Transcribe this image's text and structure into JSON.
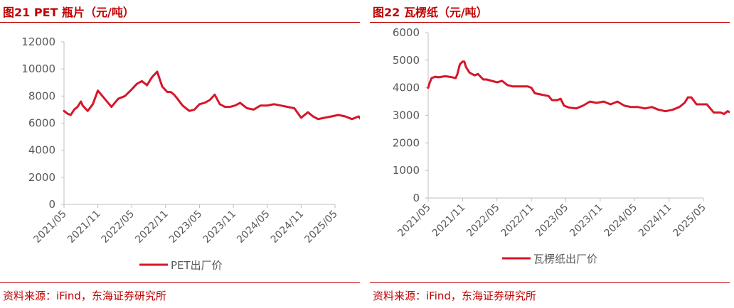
{
  "panels": [
    {
      "title": "图21  PET 瓶片（元/吨）",
      "source": "资料来源：iFind，东海证券研究所"
    },
    {
      "title": "图22  瓦楞纸（元/吨）",
      "source": "资料来源：iFind，东海证券研究所"
    }
  ],
  "colors": {
    "series": "#d7162a",
    "accent": "#c00000",
    "axis": "#bfbfbf",
    "text": "#595959"
  },
  "chart_data": [
    {
      "type": "line",
      "title": "图21  PET 瓶片（元/吨）",
      "xlabel": "",
      "ylabel": "",
      "ylim": [
        0,
        12000
      ],
      "yticks": [
        "0",
        "2000",
        "4000",
        "6000",
        "8000",
        "10000",
        "12000"
      ],
      "xticks": [
        "2021/05",
        "2021/11",
        "2022/05",
        "2022/11",
        "2023/05",
        "2023/11",
        "2024/05",
        "2024/11",
        "2025/05"
      ],
      "grid": false,
      "legend_position": "bottom",
      "series": [
        {
          "name": "PET出厂价",
          "x": [
            0,
            0.1,
            0.2,
            0.3,
            0.4,
            0.5,
            0.55,
            0.7,
            0.85,
            1.0,
            1.2,
            1.4,
            1.6,
            1.8,
            2.0,
            2.15,
            2.3,
            2.45,
            2.6,
            2.75,
            2.9,
            3.05,
            3.15,
            3.25,
            3.35,
            3.5,
            3.7,
            3.85,
            4.0,
            4.15,
            4.3,
            4.45,
            4.6,
            4.75,
            4.9,
            5.05,
            5.2,
            5.4,
            5.6,
            5.8,
            6.0,
            6.2,
            6.4,
            6.6,
            6.8,
            7.0,
            7.2,
            7.35,
            7.5,
            7.7,
            7.9,
            8.1,
            8.3,
            8.5,
            8.7,
            8.85,
            8.95,
            9.0
          ],
          "values": [
            6900,
            6700,
            6600,
            7000,
            7200,
            7600,
            7300,
            6900,
            7400,
            8400,
            7800,
            7200,
            7800,
            8000,
            8500,
            8900,
            9100,
            8800,
            9400,
            9800,
            8700,
            8300,
            8300,
            8100,
            7800,
            7300,
            6900,
            7000,
            7400,
            7500,
            7700,
            8100,
            7400,
            7200,
            7200,
            7300,
            7500,
            7100,
            7000,
            7300,
            7300,
            7400,
            7300,
            7200,
            7100,
            6400,
            6800,
            6500,
            6300,
            6400,
            6500,
            6600,
            6500,
            6300,
            6500,
            6000,
            5900,
            6100
          ]
        }
      ]
    },
    {
      "type": "line",
      "title": "图22  瓦楞纸（元/吨）",
      "xlabel": "",
      "ylabel": "",
      "ylim": [
        0,
        6000
      ],
      "yticks": [
        "0",
        "1000",
        "2000",
        "3000",
        "4000",
        "5000",
        "6000"
      ],
      "xticks": [
        "2021/05",
        "2021/11",
        "2022/05",
        "2022/11",
        "2023/05",
        "2023/11",
        "2024/05",
        "2024/11",
        "2025/05"
      ],
      "grid": false,
      "legend_position": "bottom",
      "series": [
        {
          "name": "瓦楞纸出厂价",
          "x": [
            0,
            0.05,
            0.1,
            0.2,
            0.3,
            0.5,
            0.7,
            0.8,
            0.85,
            0.92,
            1.0,
            1.05,
            1.1,
            1.2,
            1.35,
            1.45,
            1.6,
            1.7,
            1.85,
            2.0,
            2.15,
            2.3,
            2.45,
            2.6,
            2.75,
            2.9,
            3.0,
            3.1,
            3.3,
            3.5,
            3.6,
            3.75,
            3.85,
            3.95,
            4.1,
            4.3,
            4.5,
            4.7,
            4.9,
            5.1,
            5.3,
            5.5,
            5.7,
            5.9,
            6.1,
            6.3,
            6.5,
            6.7,
            6.9,
            7.1,
            7.3,
            7.45,
            7.55,
            7.65,
            7.8,
            7.95,
            8.1,
            8.3,
            8.5,
            8.6,
            8.7,
            8.8,
            8.9,
            9.0
          ],
          "values": [
            4000,
            4200,
            4350,
            4400,
            4380,
            4420,
            4380,
            4350,
            4500,
            4850,
            4950,
            4950,
            4750,
            4550,
            4450,
            4500,
            4300,
            4300,
            4250,
            4200,
            4250,
            4100,
            4050,
            4050,
            4050,
            4050,
            4000,
            3800,
            3750,
            3700,
            3550,
            3550,
            3600,
            3350,
            3280,
            3250,
            3350,
            3500,
            3450,
            3500,
            3400,
            3500,
            3350,
            3300,
            3300,
            3250,
            3300,
            3200,
            3150,
            3200,
            3300,
            3450,
            3650,
            3650,
            3400,
            3400,
            3400,
            3100,
            3100,
            3050,
            3150,
            3100,
            3100,
            3100
          ]
        }
      ]
    }
  ]
}
